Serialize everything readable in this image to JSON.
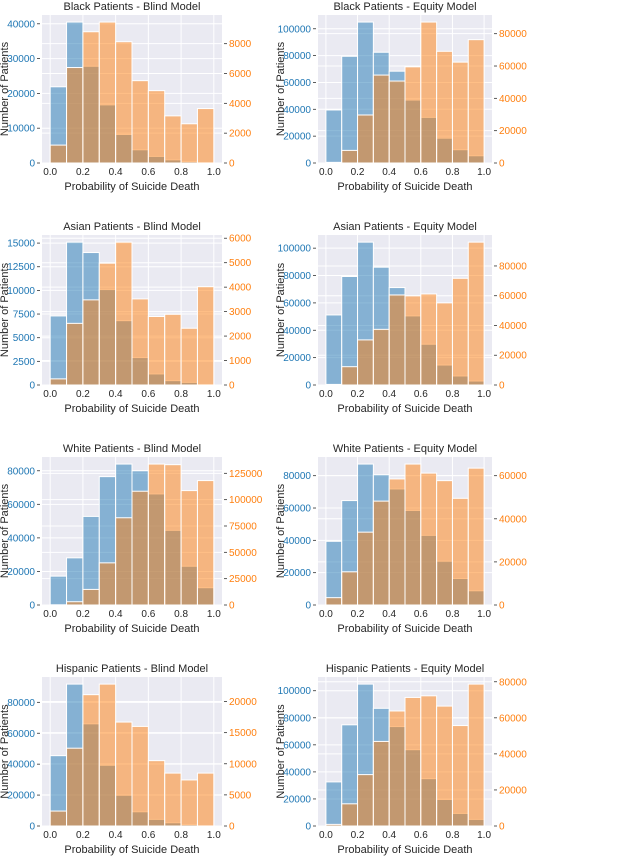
{
  "chart_data": [
    {
      "type": "bar",
      "title": "Black Patients - Blind Model",
      "xlabel": "Probability of Suicide Death",
      "ylabel": "Number of Patients",
      "bins": [
        0,
        0.1,
        0.2,
        0.3,
        0.4,
        0.5,
        0.6,
        0.7,
        0.8,
        0.9,
        1.0
      ],
      "xticks": [
        "0.0",
        "0.2",
        "0.4",
        "0.6",
        "0.8",
        "1.0"
      ],
      "left_series": {
        "axis": "left",
        "color": "#1f77b4",
        "values": [
          21900,
          40500,
          27800,
          16700,
          8200,
          3800,
          1900,
          900,
          400,
          100
        ]
      },
      "right_series": {
        "axis": "right",
        "color": "#ff7f0e",
        "values": [
          1200,
          6400,
          8800,
          9450,
          8130,
          5520,
          4850,
          3160,
          2630,
          3650
        ]
      },
      "left_ticks": [
        0,
        10000,
        20000,
        30000,
        40000
      ],
      "right_ticks": [
        0,
        2000,
        4000,
        6000,
        8000
      ]
    },
    {
      "type": "bar",
      "title": "Black Patients - Equity Model",
      "xlabel": "Probability of Suicide Death",
      "ylabel": "Number of Patients",
      "bins": [
        0,
        0.1,
        0.2,
        0.3,
        0.4,
        0.5,
        0.6,
        0.7,
        0.8,
        0.9,
        1.0
      ],
      "xticks": [
        "0.0",
        "0.2",
        "0.4",
        "0.6",
        "0.8",
        "1.0"
      ],
      "left_series": {
        "axis": "left",
        "color": "#1f77b4",
        "values": [
          39500,
          79500,
          105000,
          82500,
          68400,
          46900,
          34000,
          18500,
          9900,
          5400
        ]
      },
      "right_series": {
        "axis": "right",
        "color": "#ff7f0e",
        "values": [
          400,
          7800,
          29700,
          54400,
          50700,
          59500,
          87200,
          69100,
          62400,
          76300
        ]
      },
      "left_ticks": [
        0,
        20000,
        40000,
        60000,
        80000,
        100000
      ],
      "right_ticks": [
        0,
        20000,
        40000,
        60000,
        80000
      ]
    },
    {
      "type": "bar",
      "title": "Asian Patients - Blind Model",
      "xlabel": "Probability of Suicide Death",
      "ylabel": "Number of Patients",
      "bins": [
        0,
        0.1,
        0.2,
        0.3,
        0.4,
        0.5,
        0.6,
        0.7,
        0.8,
        0.9,
        1.0
      ],
      "xticks": [
        "0.0",
        "0.2",
        "0.4",
        "0.6",
        "0.8",
        "1.0"
      ],
      "left_series": {
        "axis": "left",
        "color": "#1f77b4",
        "values": [
          7300,
          15100,
          14000,
          10100,
          6800,
          2900,
          1170,
          460,
          280,
          50
        ]
      },
      "right_series": {
        "axis": "right",
        "color": "#ff7f0e",
        "values": [
          250,
          2520,
          3480,
          4980,
          5840,
          3520,
          2800,
          2890,
          2320,
          4020
        ]
      },
      "left_ticks": [
        0,
        2500,
        5000,
        7500,
        10000,
        12500,
        15000
      ],
      "right_ticks": [
        0,
        1000,
        2000,
        3000,
        4000,
        5000,
        6000
      ]
    },
    {
      "type": "bar",
      "title": "Asian Patients - Equity Model",
      "xlabel": "Probability of Suicide Death",
      "ylabel": "Number of Patients",
      "bins": [
        0,
        0.1,
        0.2,
        0.3,
        0.4,
        0.5,
        0.6,
        0.7,
        0.8,
        0.9,
        1.0
      ],
      "xticks": [
        "0.0",
        "0.2",
        "0.4",
        "0.6",
        "0.8",
        "1.0"
      ],
      "left_series": {
        "axis": "left",
        "color": "#1f77b4",
        "values": [
          51200,
          79300,
          104400,
          86100,
          71200,
          50500,
          29800,
          14600,
          6600,
          2900
        ]
      },
      "right_series": {
        "axis": "right",
        "color": "#ff7f0e",
        "values": [
          400,
          12300,
          30300,
          37400,
          60500,
          59900,
          61200,
          55200,
          71700,
          96000
        ]
      },
      "left_ticks": [
        0,
        20000,
        40000,
        60000,
        80000,
        100000
      ],
      "right_ticks": [
        0,
        20000,
        40000,
        60000,
        80000
      ]
    },
    {
      "type": "bar",
      "title": "White Patients - Blind Model",
      "xlabel": "Probability of Suicide Death",
      "ylabel": "Number of Patients",
      "bins": [
        0,
        0.1,
        0.2,
        0.3,
        0.4,
        0.5,
        0.6,
        0.7,
        0.8,
        0.9,
        1.0
      ],
      "xticks": [
        "0.0",
        "0.2",
        "0.4",
        "0.6",
        "0.8",
        "1.0"
      ],
      "left_series": {
        "axis": "left",
        "color": "#1f77b4",
        "values": [
          17200,
          28100,
          52800,
          76500,
          84000,
          80000,
          66200,
          44500,
          23100,
          10300
        ]
      },
      "right_series": {
        "axis": "right",
        "color": "#ff7f0e",
        "values": [
          200,
          3100,
          14800,
          40000,
          82800,
          108000,
          133800,
          133200,
          108600,
          118100
        ]
      },
      "left_ticks": [
        0,
        20000,
        40000,
        60000,
        80000
      ],
      "right_ticks": [
        0,
        25000,
        50000,
        75000,
        100000,
        125000
      ]
    },
    {
      "type": "bar",
      "title": "White Patients - Equity Model",
      "xlabel": "Probability of Suicide Death",
      "ylabel": "Number of Patients",
      "bins": [
        0,
        0.1,
        0.2,
        0.3,
        0.4,
        0.5,
        0.6,
        0.7,
        0.8,
        0.9,
        1.0
      ],
      "xticks": [
        "0.0",
        "0.2",
        "0.4",
        "0.6",
        "0.8",
        "1.0"
      ],
      "left_series": {
        "axis": "left",
        "color": "#1f77b4",
        "values": [
          39400,
          64600,
          87200,
          80600,
          71800,
          58500,
          43100,
          27100,
          16400,
          8800
        ]
      },
      "right_series": {
        "axis": "right",
        "color": "#ff7f0e",
        "values": [
          3400,
          15400,
          33800,
          48200,
          58500,
          65400,
          61200,
          57700,
          49500,
          63500
        ]
      },
      "left_ticks": [
        0,
        20000,
        40000,
        60000,
        80000
      ],
      "right_ticks": [
        0,
        20000,
        40000,
        60000
      ]
    },
    {
      "type": "bar",
      "title": "Hispanic Patients - Blind Model",
      "xlabel": "Probability of Suicide Death",
      "ylabel": "Number of Patients",
      "bins": [
        0,
        0.1,
        0.2,
        0.3,
        0.4,
        0.5,
        0.6,
        0.7,
        0.8,
        0.9,
        1.0
      ],
      "xticks": [
        "0.0",
        "0.2",
        "0.4",
        "0.6",
        "0.8",
        "1.0"
      ],
      "left_series": {
        "axis": "left",
        "color": "#1f77b4",
        "values": [
          45500,
          91800,
          66100,
          39300,
          19900,
          9200,
          4300,
          2100,
          900,
          200
        ]
      },
      "right_series": {
        "axis": "right",
        "color": "#ff7f0e",
        "values": [
          2400,
          12500,
          21100,
          22800,
          16700,
          16000,
          10500,
          8500,
          7400,
          8500
        ]
      },
      "left_ticks": [
        0,
        20000,
        40000,
        60000,
        80000
      ],
      "right_ticks": [
        0,
        5000,
        10000,
        15000,
        20000
      ]
    },
    {
      "type": "bar",
      "title": "Hispanic Patients - Equity Model",
      "xlabel": "Probability of Suicide Death",
      "ylabel": "Number of Patients",
      "bins": [
        0,
        0.1,
        0.2,
        0.3,
        0.4,
        0.5,
        0.6,
        0.7,
        0.8,
        0.9,
        1.0
      ],
      "xticks": [
        "0.0",
        "0.2",
        "0.4",
        "0.6",
        "0.8",
        "1.0"
      ],
      "left_series": {
        "axis": "left",
        "color": "#1f77b4",
        "values": [
          32600,
          74800,
          104900,
          87000,
          73500,
          56400,
          35000,
          19600,
          9300,
          4900
        ]
      },
      "right_series": {
        "axis": "right",
        "color": "#ff7f0e",
        "values": [
          900,
          12300,
          28500,
          46900,
          63800,
          71300,
          72200,
          66500,
          55700,
          78700
        ]
      },
      "left_ticks": [
        0,
        20000,
        40000,
        60000,
        80000,
        100000
      ],
      "right_ticks": [
        0,
        20000,
        40000,
        60000,
        80000
      ]
    }
  ],
  "style": {
    "plot_background": "#eaeaf2",
    "grid_color": "#ffffff",
    "left_tick_color": "#1f77b4",
    "right_tick_color": "#ff7f0e",
    "text_color": "#262626"
  }
}
